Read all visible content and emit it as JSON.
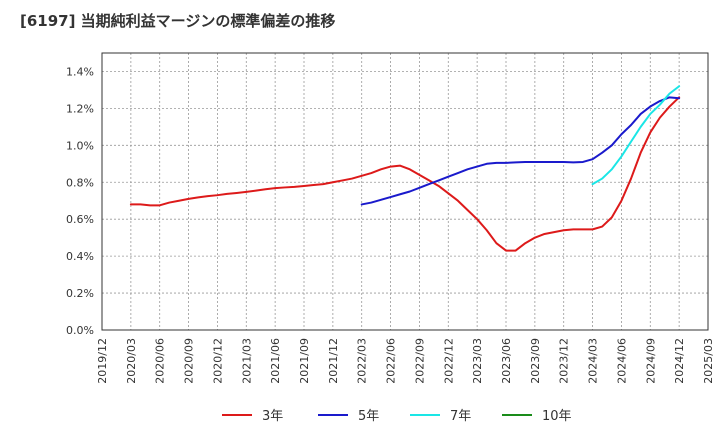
{
  "chart_data": {
    "type": "line",
    "title": "[6197]  当期純利益マージンの標準偏差の推移",
    "xlabel": "",
    "ylabel": "",
    "x_ticks": [
      "2019/12",
      "2020/03",
      "2020/06",
      "2020/09",
      "2020/12",
      "2021/03",
      "2021/06",
      "2021/09",
      "2021/12",
      "2022/03",
      "2022/06",
      "2022/09",
      "2022/12",
      "2023/03",
      "2023/06",
      "2023/09",
      "2023/12",
      "2024/03",
      "2024/06",
      "2024/09",
      "2024/12",
      "2025/03"
    ],
    "y_ticks": [
      "0.0%",
      "0.2%",
      "0.4%",
      "0.6%",
      "0.8%",
      "1.0%",
      "1.2%",
      "1.4%"
    ],
    "ylim": [
      0,
      1.5
    ],
    "grid": true,
    "legend_position": "bottom",
    "series": [
      {
        "name": "3年",
        "color": "#dd1a1a",
        "x": [
          "2020/03",
          "2020/04",
          "2020/05",
          "2020/06",
          "2020/07",
          "2020/08",
          "2020/09",
          "2020/10",
          "2020/11",
          "2020/12",
          "2021/01",
          "2021/02",
          "2021/03",
          "2021/04",
          "2021/05",
          "2021/06",
          "2021/07",
          "2021/08",
          "2021/09",
          "2021/10",
          "2021/11",
          "2021/12",
          "2022/01",
          "2022/02",
          "2022/03",
          "2022/04",
          "2022/05",
          "2022/06",
          "2022/07",
          "2022/08",
          "2022/09",
          "2022/10",
          "2022/11",
          "2022/12",
          "2023/01",
          "2023/02",
          "2023/03",
          "2023/04",
          "2023/05",
          "2023/06",
          "2023/07",
          "2023/08",
          "2023/09",
          "2023/10",
          "2023/11",
          "2023/12",
          "2024/01",
          "2024/02",
          "2024/03",
          "2024/04",
          "2024/05",
          "2024/06",
          "2024/07",
          "2024/08",
          "2024/09",
          "2024/10",
          "2024/11",
          "2024/12"
        ],
        "values": [
          0.68,
          0.68,
          0.675,
          0.675,
          0.69,
          0.7,
          0.71,
          0.718,
          0.725,
          0.73,
          0.737,
          0.742,
          0.748,
          0.755,
          0.762,
          0.768,
          0.772,
          0.775,
          0.78,
          0.785,
          0.79,
          0.8,
          0.81,
          0.82,
          0.835,
          0.85,
          0.87,
          0.885,
          0.89,
          0.87,
          0.84,
          0.81,
          0.78,
          0.74,
          0.7,
          0.65,
          0.6,
          0.54,
          0.47,
          0.43,
          0.43,
          0.47,
          0.5,
          0.52,
          0.53,
          0.54,
          0.545,
          0.545,
          0.545,
          0.56,
          0.61,
          0.7,
          0.82,
          0.96,
          1.07,
          1.15,
          1.21,
          1.26
        ]
      },
      {
        "name": "5年",
        "color": "#1a1acc",
        "x": [
          "2022/03",
          "2022/04",
          "2022/05",
          "2022/06",
          "2022/07",
          "2022/08",
          "2022/09",
          "2022/10",
          "2022/11",
          "2022/12",
          "2023/01",
          "2023/02",
          "2023/03",
          "2023/04",
          "2023/05",
          "2023/06",
          "2023/07",
          "2023/08",
          "2023/09",
          "2023/10",
          "2023/11",
          "2023/12",
          "2024/01",
          "2024/02",
          "2024/03",
          "2024/04",
          "2024/05",
          "2024/06",
          "2024/07",
          "2024/08",
          "2024/09",
          "2024/10",
          "2024/11",
          "2024/12"
        ],
        "values": [
          0.68,
          0.69,
          0.705,
          0.72,
          0.735,
          0.75,
          0.77,
          0.79,
          0.81,
          0.83,
          0.85,
          0.87,
          0.885,
          0.9,
          0.905,
          0.905,
          0.908,
          0.91,
          0.91,
          0.91,
          0.91,
          0.91,
          0.908,
          0.91,
          0.925,
          0.96,
          1.0,
          1.06,
          1.11,
          1.17,
          1.21,
          1.24,
          1.26,
          1.255
        ]
      },
      {
        "name": "7年",
        "color": "#1ae6e6",
        "x": [
          "2024/03",
          "2024/04",
          "2024/05",
          "2024/06",
          "2024/07",
          "2024/08",
          "2024/09",
          "2024/10",
          "2024/11",
          "2024/12"
        ],
        "values": [
          0.79,
          0.82,
          0.87,
          0.94,
          1.02,
          1.1,
          1.17,
          1.22,
          1.28,
          1.32
        ]
      },
      {
        "name": "10年",
        "color": "#1a8c1a",
        "x": [],
        "values": []
      }
    ]
  }
}
